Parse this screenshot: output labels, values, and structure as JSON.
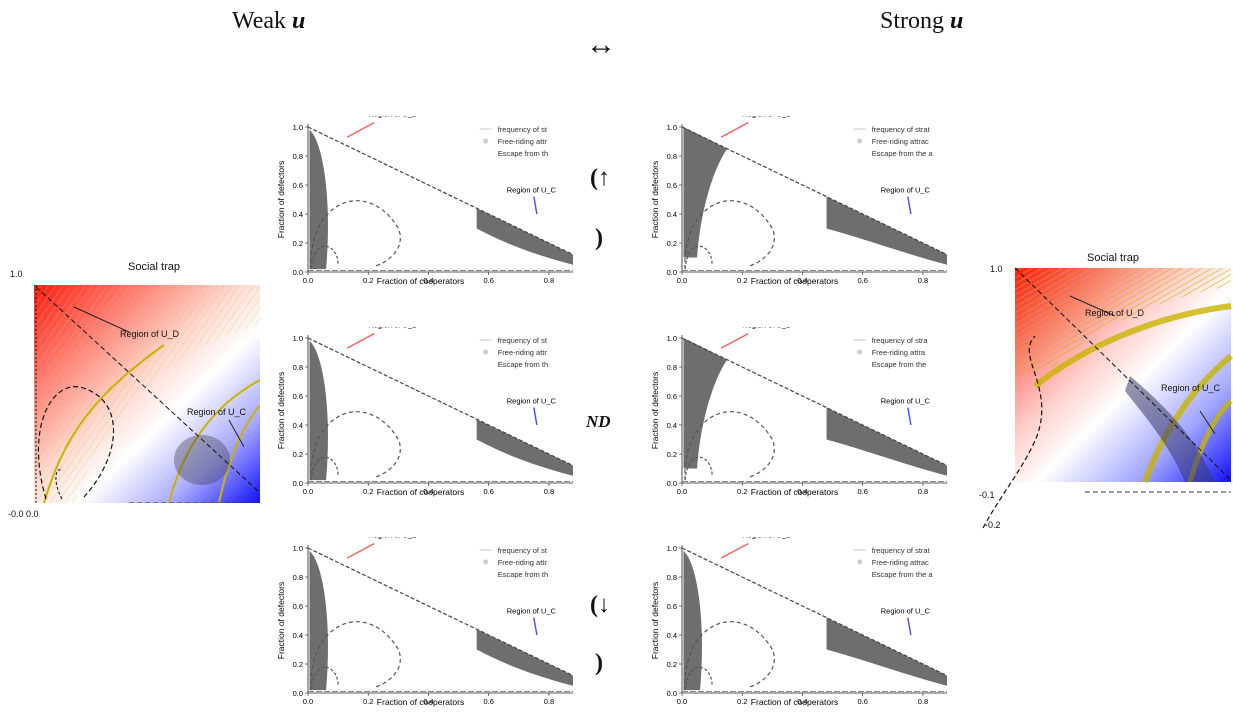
{
  "header": {
    "left_title": "Weak",
    "left_var": "u",
    "right_title": "Strong",
    "right_var": "u",
    "arrow": "↔"
  },
  "row_labels": {
    "up_top": "(↑",
    "up_bottom": ")",
    "nd": "ND",
    "down_top": "(↓",
    "down_bottom": ")"
  },
  "small_plot": {
    "xlabel": "Fraction of cooperators",
    "ylabel": "Fraction of defectors",
    "region_d": "Region of U_D",
    "region_c": "Region of U_C",
    "legend_left": [
      "frequency of st",
      "Free-riding attr",
      "Escape from th"
    ],
    "legend_right": [
      "frequency of strat",
      "Free-riding attrac",
      "Escape from the a"
    ],
    "legend_right_alt": [
      "frequency of stra",
      "Free-riding attra",
      "Escape from the"
    ],
    "xticks": [
      "0.0",
      "0.2",
      "0.4",
      "0.6",
      "0.8"
    ],
    "yticks": [
      "0.0",
      "0.2",
      "0.4",
      "0.6",
      "0.8",
      "1.0"
    ]
  },
  "side_left": {
    "title": "Social trap",
    "y_top": "1.0",
    "corner": "-0.0 0.0",
    "region_d": "Region of U_D",
    "region_c": "Region of U_C"
  },
  "side_right": {
    "title": "Social trap",
    "y_top": "1.0",
    "y_m01": "-0.1",
    "y_m02": "-0.2",
    "region_d": "Region of U_D",
    "region_c": "Region of U_C"
  },
  "colors": {
    "red": "#ff2a1a",
    "blue": "#1a1aff",
    "yellow": "#c8b400",
    "arrow_red": "#f06060",
    "arrow_blue": "#4a4aff"
  }
}
